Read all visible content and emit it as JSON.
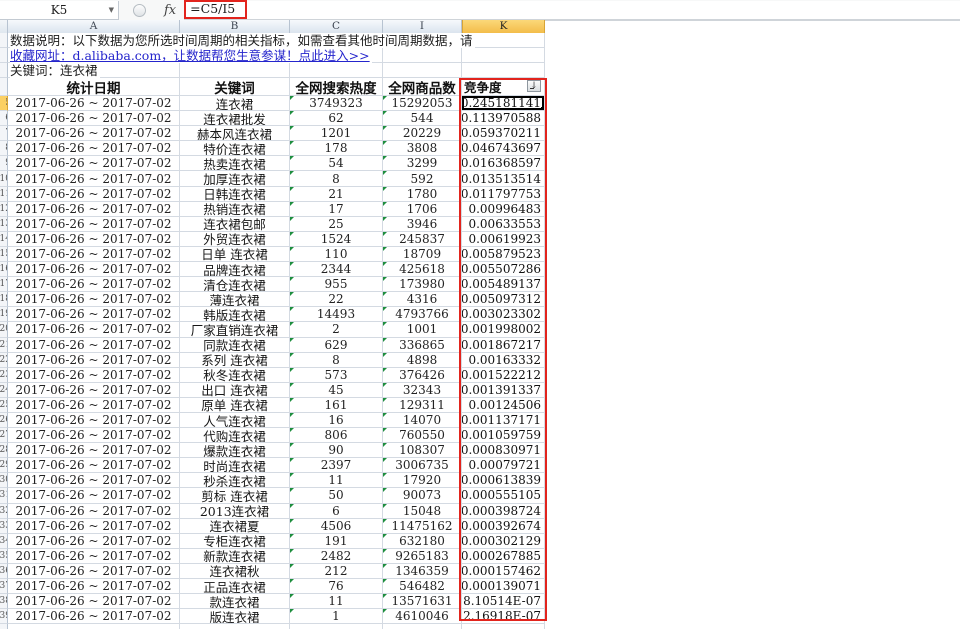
{
  "formula_bar": {
    "cell_reference": "K5",
    "fx_label": "fx",
    "formula": "=C5/I5"
  },
  "column_headers": [
    "A",
    "B",
    "C",
    "I",
    "K"
  ],
  "selected_column": "K",
  "notes": {
    "data_note": "数据说明：以下数据为您所选时间周期的相关指标，如需查看其他时间周期数据，请",
    "bookmark_link": "收藏网址：d.alibaba.com，让数据帮您生意参谋！点此进入>>",
    "keyword_label": "关键词：连衣裙"
  },
  "table": {
    "headers": {
      "date": "统计日期",
      "keyword": "关键词",
      "search_heat": "全网搜索热度",
      "product_count": "全网商品数",
      "competition": "竞争度"
    },
    "date_range": "2017-06-26 ~ 2017-07-02",
    "start_row_number": 5,
    "selected_cell": "K5",
    "rows": [
      {
        "keyword": "连衣裙",
        "search_heat": "3749323",
        "product_count": "15292053",
        "competition": "0.245181141"
      },
      {
        "keyword": "连衣裙批发",
        "search_heat": "62",
        "product_count": "544",
        "competition": "0.113970588"
      },
      {
        "keyword": "赫本风连衣裙",
        "search_heat": "1201",
        "product_count": "20229",
        "competition": "0.059370211"
      },
      {
        "keyword": "特价连衣裙",
        "search_heat": "178",
        "product_count": "3808",
        "competition": "0.046743697"
      },
      {
        "keyword": "热卖连衣裙",
        "search_heat": "54",
        "product_count": "3299",
        "competition": "0.016368597"
      },
      {
        "keyword": "加厚连衣裙",
        "search_heat": "8",
        "product_count": "592",
        "competition": "0.013513514"
      },
      {
        "keyword": "日韩连衣裙",
        "search_heat": "21",
        "product_count": "1780",
        "competition": "0.011797753"
      },
      {
        "keyword": "热销连衣裙",
        "search_heat": "17",
        "product_count": "1706",
        "competition": "0.00996483"
      },
      {
        "keyword": "连衣裙包邮",
        "search_heat": "25",
        "product_count": "3946",
        "competition": "0.00633553"
      },
      {
        "keyword": "外贸连衣裙",
        "search_heat": "1524",
        "product_count": "245837",
        "competition": "0.00619923"
      },
      {
        "keyword": "日单 连衣裙",
        "search_heat": "110",
        "product_count": "18709",
        "competition": "0.005879523"
      },
      {
        "keyword": "品牌连衣裙",
        "search_heat": "2344",
        "product_count": "425618",
        "competition": "0.005507286"
      },
      {
        "keyword": "清仓连衣裙",
        "search_heat": "955",
        "product_count": "173980",
        "competition": "0.005489137"
      },
      {
        "keyword": "薄连衣裙",
        "search_heat": "22",
        "product_count": "4316",
        "competition": "0.005097312"
      },
      {
        "keyword": "韩版连衣裙",
        "search_heat": "14493",
        "product_count": "4793766",
        "competition": "0.003023302"
      },
      {
        "keyword": "厂家直销连衣裙",
        "search_heat": "2",
        "product_count": "1001",
        "competition": "0.001998002"
      },
      {
        "keyword": "同款连衣裙",
        "search_heat": "629",
        "product_count": "336865",
        "competition": "0.001867217"
      },
      {
        "keyword": "系列 连衣裙",
        "search_heat": "8",
        "product_count": "4898",
        "competition": "0.00163332"
      },
      {
        "keyword": "秋冬连衣裙",
        "search_heat": "573",
        "product_count": "376426",
        "competition": "0.001522212"
      },
      {
        "keyword": "出口 连衣裙",
        "search_heat": "45",
        "product_count": "32343",
        "competition": "0.001391337"
      },
      {
        "keyword": "原单 连衣裙",
        "search_heat": "161",
        "product_count": "129311",
        "competition": "0.00124506"
      },
      {
        "keyword": "人气连衣裙",
        "search_heat": "16",
        "product_count": "14070",
        "competition": "0.001137171"
      },
      {
        "keyword": "代购连衣裙",
        "search_heat": "806",
        "product_count": "760550",
        "competition": "0.001059759"
      },
      {
        "keyword": "爆款连衣裙",
        "search_heat": "90",
        "product_count": "108307",
        "competition": "0.000830971"
      },
      {
        "keyword": "时尚连衣裙",
        "search_heat": "2397",
        "product_count": "3006735",
        "competition": "0.00079721"
      },
      {
        "keyword": "秒杀连衣裙",
        "search_heat": "11",
        "product_count": "17920",
        "competition": "0.000613839"
      },
      {
        "keyword": "剪标 连衣裙",
        "search_heat": "50",
        "product_count": "90073",
        "competition": "0.000555105"
      },
      {
        "keyword": "2013连衣裙",
        "search_heat": "6",
        "product_count": "15048",
        "competition": "0.000398724"
      },
      {
        "keyword": "连衣裙夏",
        "search_heat": "4506",
        "product_count": "11475162",
        "competition": "0.000392674"
      },
      {
        "keyword": "专柜连衣裙",
        "search_heat": "191",
        "product_count": "632180",
        "competition": "0.000302129"
      },
      {
        "keyword": "新款连衣裙",
        "search_heat": "2482",
        "product_count": "9265183",
        "competition": "0.000267885"
      },
      {
        "keyword": "连衣裙秋",
        "search_heat": "212",
        "product_count": "1346359",
        "competition": "0.000157462"
      },
      {
        "keyword": "正品连衣裙",
        "search_heat": "76",
        "product_count": "546482",
        "competition": "0.000139071"
      },
      {
        "keyword": "款连衣裙",
        "search_heat": "11",
        "product_count": "13571631",
        "competition": "8.10514E-07"
      },
      {
        "keyword": "版连衣裙",
        "search_heat": "1",
        "product_count": "4610046",
        "competition": "2.16918E-07"
      }
    ]
  },
  "icons": {
    "name_box_dropdown": "▼",
    "filter_arrow": "↓"
  },
  "colors": {
    "highlight_red": "#e2241d",
    "selected_header_amber": "#f3bd4a",
    "row_header_highlight": "#fbd064",
    "hyperlink_blue": "#2525cc",
    "gridline": "#d4dae2",
    "text_flag_green": "#1e8e3e"
  }
}
